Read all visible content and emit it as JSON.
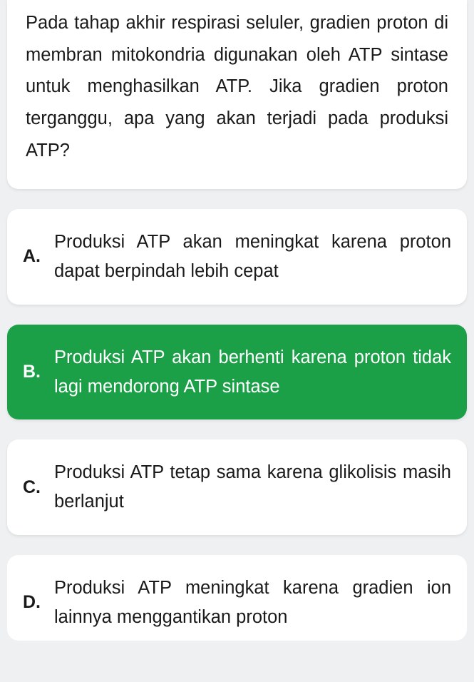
{
  "question": {
    "text": "Pada tahap akhir respirasi seluler, gradien proton di membran mitokondria digunakan oleh ATP sintase untuk menghasilkan ATP. Jika gradien proton terganggu, apa yang akan terjadi pada produksi ATP?"
  },
  "options": [
    {
      "letter": "A.",
      "text": "Produksi ATP akan meningkat karena proton dapat berpindah lebih cepat",
      "selected": false
    },
    {
      "letter": "B.",
      "text": "Produksi ATP akan berhenti karena proton tidak lagi mendorong ATP sintase",
      "selected": true
    },
    {
      "letter": "C.",
      "text": "Produksi ATP tetap sama karena glikolisis masih berlanjut",
      "selected": false
    },
    {
      "letter": "D.",
      "text": "Produksi ATP meningkat karena gradien ion lainnya menggantikan proton",
      "selected": false
    }
  ],
  "colors": {
    "page_bg": "#eef0f2",
    "card_bg": "#ffffff",
    "text": "#1a1a1a",
    "selected_bg": "#1ba048",
    "selected_text": "#ffffff"
  }
}
